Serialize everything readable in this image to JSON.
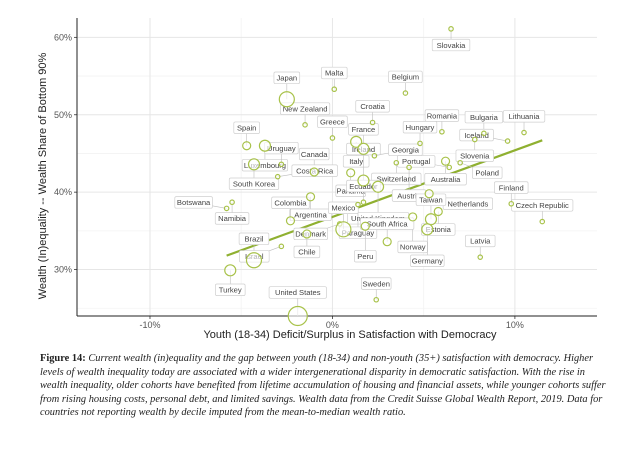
{
  "chart_data": {
    "type": "scatter",
    "title": "",
    "xlabel": "Youth (18-34) Deficit/Surplus in Satisfaction with Democracy",
    "ylabel": "Wealth (In)equality -- Wealth Share of Bottom 90%",
    "xlim": [
      -0.14,
      0.145
    ],
    "ylim": [
      0.24,
      0.625
    ],
    "x_ticks": [
      -0.1,
      0.0,
      0.1
    ],
    "x_tick_labels": [
      "-10%",
      "0%",
      "10%"
    ],
    "y_ticks": [
      0.3,
      0.4,
      0.5,
      0.6
    ],
    "y_tick_labels": [
      "30%",
      "40%",
      "50%",
      "60%"
    ],
    "grid": true,
    "legend": "none",
    "colors": {
      "points": "#a8c24a",
      "fit_line": "#8fb030",
      "label_border": "#cfcfcf"
    },
    "trend_line": {
      "x": [
        -0.058,
        0.115
      ],
      "y": [
        0.318,
        0.467
      ]
    },
    "points": [
      {
        "label": "Slovakia",
        "x": 0.065,
        "y": 0.611,
        "size": 1
      },
      {
        "label": "Belgium",
        "x": 0.04,
        "y": 0.528,
        "size": 1
      },
      {
        "label": "Japan",
        "x": -0.025,
        "y": 0.52,
        "size": 4
      },
      {
        "label": "Malta",
        "x": 0.001,
        "y": 0.533,
        "size": 1
      },
      {
        "label": "New Zealand",
        "x": -0.015,
        "y": 0.487,
        "size": 1
      },
      {
        "label": "Greece",
        "x": 0.0,
        "y": 0.47,
        "size": 1
      },
      {
        "label": "Croatia",
        "x": 0.022,
        "y": 0.49,
        "size": 1
      },
      {
        "label": "Romania",
        "x": 0.06,
        "y": 0.478,
        "size": 1
      },
      {
        "label": "Bulgaria",
        "x": 0.083,
        "y": 0.476,
        "size": 1
      },
      {
        "label": "Lithuania",
        "x": 0.105,
        "y": 0.477,
        "size": 1
      },
      {
        "label": "Spain",
        "x": -0.047,
        "y": 0.46,
        "size": 2
      },
      {
        "label": "Luxembourg",
        "x": -0.037,
        "y": 0.46,
        "size": 3
      },
      {
        "label": "Italy",
        "x": 0.013,
        "y": 0.465,
        "size": 3
      },
      {
        "label": "Hungary",
        "x": 0.048,
        "y": 0.463,
        "size": 1
      },
      {
        "label": "Slovenia",
        "x": 0.078,
        "y": 0.468,
        "size": 1
      },
      {
        "label": "Iceland",
        "x": 0.096,
        "y": 0.466,
        "size": 1
      },
      {
        "label": "France",
        "x": 0.017,
        "y": 0.456,
        "size": 3
      },
      {
        "label": "Georgia",
        "x": 0.023,
        "y": 0.447,
        "size": 1
      },
      {
        "label": "Australia",
        "x": 0.062,
        "y": 0.44,
        "size": 2
      },
      {
        "label": "Uruguay",
        "x": -0.028,
        "y": 0.436,
        "size": 1
      },
      {
        "label": "South Korea",
        "x": -0.043,
        "y": 0.436,
        "size": 3
      },
      {
        "label": "Poland",
        "x": 0.07,
        "y": 0.438,
        "size": 1
      },
      {
        "label": "Canada",
        "x": -0.01,
        "y": 0.426,
        "size": 2
      },
      {
        "label": "Switzerland",
        "x": 0.035,
        "y": 0.438,
        "size": 1
      },
      {
        "label": "Austria",
        "x": 0.042,
        "y": 0.432,
        "size": 1
      },
      {
        "label": "Portugal",
        "x": 0.064,
        "y": 0.432,
        "size": 1
      },
      {
        "label": "Costa Rica",
        "x": -0.03,
        "y": 0.42,
        "size": 1
      },
      {
        "label": "Panama",
        "x": 0.01,
        "y": 0.425,
        "size": 2
      },
      {
        "label": "Ireland",
        "x": 0.017,
        "y": 0.415,
        "size": 3
      },
      {
        "label": "United Kingdom",
        "x": 0.025,
        "y": 0.407,
        "size": 3
      },
      {
        "label": "Netherlands",
        "x": 0.053,
        "y": 0.398,
        "size": 2
      },
      {
        "label": "Namibia",
        "x": -0.055,
        "y": 0.387,
        "size": 1
      },
      {
        "label": "Finland",
        "x": 0.098,
        "y": 0.385,
        "size": 1
      },
      {
        "label": "Argentina",
        "x": -0.012,
        "y": 0.394,
        "size": 2
      },
      {
        "label": "Paraguay",
        "x": 0.014,
        "y": 0.384,
        "size": 1
      },
      {
        "label": "Ecuador",
        "x": 0.017,
        "y": 0.387,
        "size": 1
      },
      {
        "label": "Botswana",
        "x": -0.058,
        "y": 0.379,
        "size": 1
      },
      {
        "label": "Estonia",
        "x": 0.058,
        "y": 0.375,
        "size": 2
      },
      {
        "label": "Norway",
        "x": 0.044,
        "y": 0.368,
        "size": 2
      },
      {
        "label": "Taiwan",
        "x": 0.054,
        "y": 0.365,
        "size": 3
      },
      {
        "label": "Colombia",
        "x": -0.023,
        "y": 0.363,
        "size": 2
      },
      {
        "label": "Denmark",
        "x": 0.004,
        "y": 0.359,
        "size": 1
      },
      {
        "label": "Germany",
        "x": 0.052,
        "y": 0.352,
        "size": 3
      },
      {
        "label": "Peru",
        "x": 0.018,
        "y": 0.356,
        "size": 2
      },
      {
        "label": "Czech Republic",
        "x": 0.115,
        "y": 0.362,
        "size": 1
      },
      {
        "label": "Chile",
        "x": -0.014,
        "y": 0.346,
        "size": 2
      },
      {
        "label": "Mexico",
        "x": 0.006,
        "y": 0.352,
        "size": 4
      },
      {
        "label": "South Africa",
        "x": 0.03,
        "y": 0.336,
        "size": 2
      },
      {
        "label": "Brazil",
        "x": -0.043,
        "y": 0.312,
        "size": 4
      },
      {
        "label": "Israel",
        "x": -0.028,
        "y": 0.33,
        "size": 1
      },
      {
        "label": "Latvia",
        "x": 0.081,
        "y": 0.316,
        "size": 1
      },
      {
        "label": "Turkey",
        "x": -0.056,
        "y": 0.299,
        "size": 3
      },
      {
        "label": "Sweden",
        "x": 0.024,
        "y": 0.261,
        "size": 1
      },
      {
        "label": "United States",
        "x": -0.019,
        "y": 0.24,
        "size": 5
      }
    ]
  },
  "caption": {
    "label": "Figure 14:",
    "text": "Current wealth (in)equality and the gap between youth (18-34) and non-youth (35+) satisfaction with democracy. Higher levels of wealth inequality today are associated with a wider intergenerational disparity in democratic satisfaction. With the rise in wealth inequality, older cohorts have benefited from lifetime accumulation of housing and financial assets, while younger cohorts suffer from rising housing costs, personal debt, and limited savings. Wealth data from the Credit Suisse Global Wealth Report, 2019. Data for countries not reporting wealth by decile imputed from the mean-to-median wealth ratio."
  }
}
